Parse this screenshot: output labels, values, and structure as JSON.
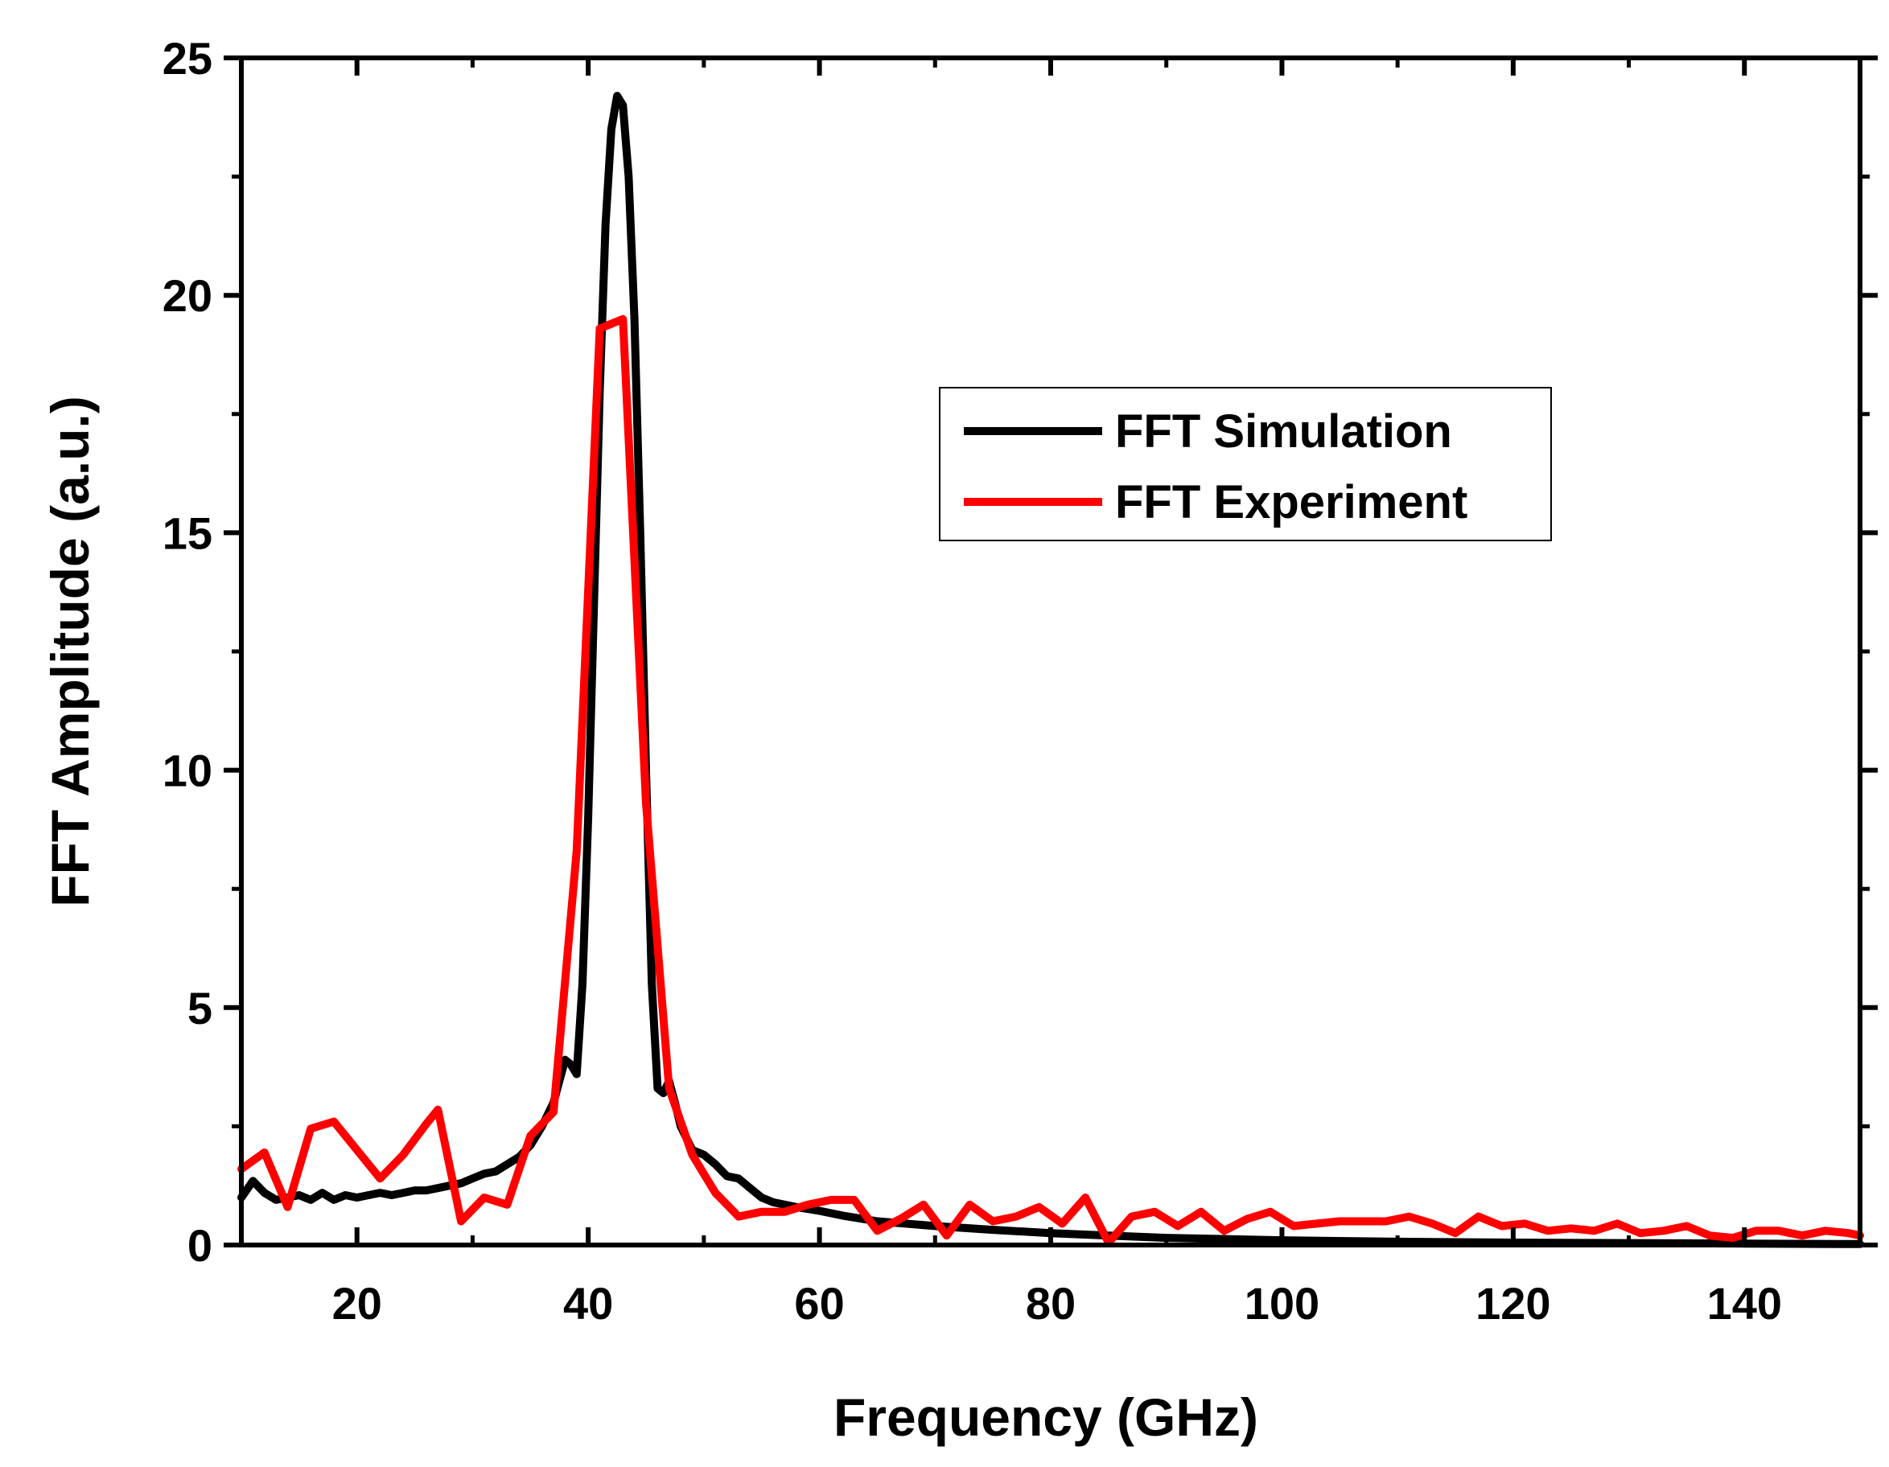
{
  "chart_data": {
    "type": "line",
    "title": "",
    "xlabel": "Frequency (GHz)",
    "ylabel": "FFT Amplitude (a.u.)",
    "xlim": [
      10,
      150
    ],
    "ylim": [
      0,
      25
    ],
    "x_ticks": [
      20,
      40,
      60,
      80,
      100,
      120,
      140
    ],
    "y_ticks": [
      0,
      5,
      10,
      15,
      20,
      25
    ],
    "x_tick_labels": [
      "20",
      "40",
      "60",
      "80",
      "100",
      "120",
      "140"
    ],
    "y_tick_labels": [
      "0",
      "5",
      "10",
      "15",
      "20",
      "25"
    ],
    "grid": false,
    "legend_position": "upper-right",
    "series": [
      {
        "name": "FFT Simulation",
        "color": "#000000",
        "x": [
          10,
          11,
          12,
          13,
          14,
          15,
          16,
          17,
          18,
          19,
          20,
          21,
          22,
          23,
          24,
          25,
          26,
          27,
          28,
          29,
          30,
          31,
          32,
          33,
          34,
          35,
          36,
          37,
          38,
          38.5,
          39,
          39.5,
          40,
          40.5,
          41,
          41.5,
          42,
          42.5,
          43,
          43.5,
          44,
          44.5,
          45,
          45.5,
          46,
          46.5,
          47,
          47.5,
          48,
          49,
          50,
          51,
          52,
          53,
          54,
          55,
          56,
          58,
          60,
          62,
          65,
          70,
          75,
          80,
          85,
          90,
          100,
          110,
          120,
          130,
          140,
          150
        ],
        "values": [
          1.0,
          1.35,
          1.1,
          0.95,
          1.0,
          1.05,
          0.95,
          1.1,
          0.95,
          1.05,
          1.0,
          1.05,
          1.1,
          1.05,
          1.1,
          1.15,
          1.15,
          1.2,
          1.25,
          1.3,
          1.4,
          1.5,
          1.55,
          1.7,
          1.85,
          2.1,
          2.5,
          3.0,
          3.9,
          3.8,
          3.6,
          5.5,
          9.0,
          13.5,
          18.0,
          21.5,
          23.5,
          24.2,
          24.0,
          22.5,
          19.5,
          15.0,
          10.0,
          5.5,
          3.3,
          3.2,
          3.45,
          3.0,
          2.5,
          2.0,
          1.9,
          1.7,
          1.45,
          1.4,
          1.2,
          1.0,
          0.9,
          0.8,
          0.72,
          0.62,
          0.5,
          0.4,
          0.32,
          0.25,
          0.2,
          0.15,
          0.1,
          0.07,
          0.05,
          0.04,
          0.03,
          0.02
        ]
      },
      {
        "name": "FFT Experiment",
        "color": "#ff0000",
        "x": [
          10,
          12,
          14,
          16,
          18,
          20,
          22,
          24,
          26,
          27,
          29,
          31,
          33,
          35,
          37,
          39,
          41,
          43,
          45,
          47,
          49,
          51,
          53,
          55,
          57,
          59,
          61,
          63,
          65,
          67,
          69,
          71,
          73,
          75,
          77,
          79,
          81,
          83,
          85,
          87,
          89,
          91,
          93,
          95,
          97,
          99,
          101,
          103,
          105,
          107,
          109,
          111,
          113,
          115,
          117,
          119,
          121,
          123,
          125,
          127,
          129,
          131,
          133,
          135,
          137,
          139,
          141,
          143,
          145,
          147,
          149,
          150
        ],
        "values": [
          1.6,
          1.95,
          0.8,
          2.45,
          2.6,
          2.0,
          1.4,
          1.9,
          2.55,
          2.85,
          0.5,
          1.0,
          0.85,
          2.3,
          2.8,
          8.3,
          19.3,
          19.5,
          9.3,
          3.3,
          1.9,
          1.1,
          0.6,
          0.7,
          0.7,
          0.85,
          0.95,
          0.95,
          0.3,
          0.55,
          0.85,
          0.2,
          0.85,
          0.5,
          0.6,
          0.8,
          0.45,
          1.0,
          0.05,
          0.6,
          0.7,
          0.4,
          0.7,
          0.3,
          0.55,
          0.7,
          0.4,
          0.45,
          0.5,
          0.5,
          0.5,
          0.6,
          0.45,
          0.25,
          0.6,
          0.4,
          0.45,
          0.3,
          0.35,
          0.3,
          0.45,
          0.25,
          0.3,
          0.4,
          0.2,
          0.15,
          0.3,
          0.3,
          0.2,
          0.3,
          0.25,
          0.2
        ]
      }
    ]
  }
}
